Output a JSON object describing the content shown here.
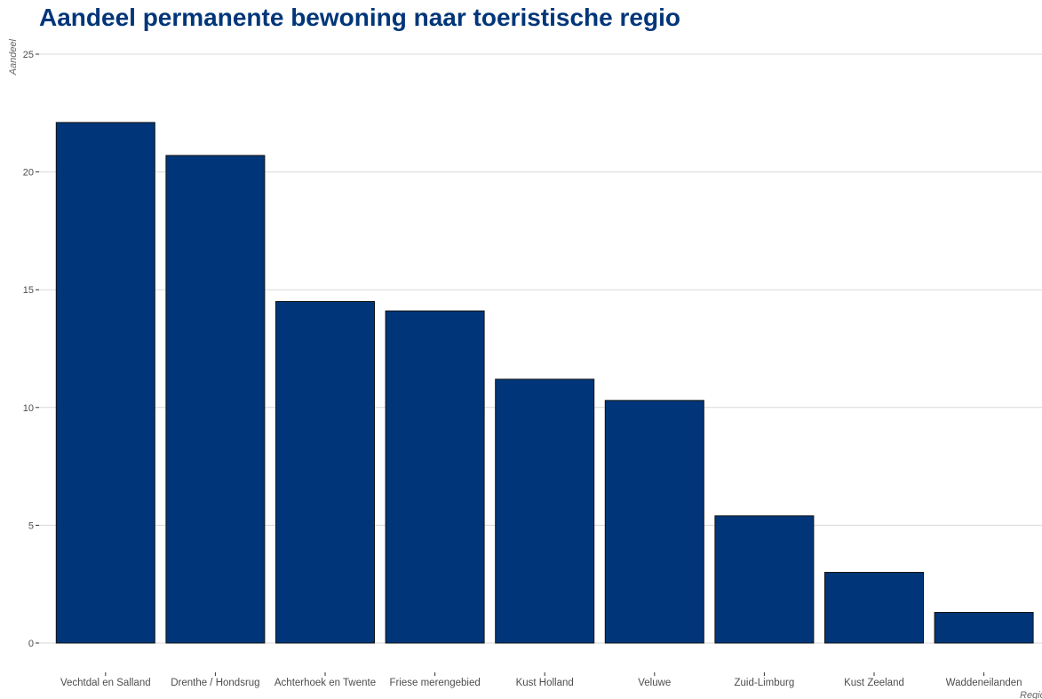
{
  "colors": {
    "bar_fill": "#003679",
    "title": "#003679"
  },
  "chart_data": {
    "type": "bar",
    "title": "Aandeel permanente bewoning naar toeristische regio",
    "xlabel": "Regio",
    "ylabel": "Aandeel",
    "categories": [
      "Vechtdal en Salland",
      "Drenthe / Hondsrug",
      "Achterhoek en Twente",
      "Friese merengebied",
      "Kust Holland",
      "Veluwe",
      "Zuid-Limburg",
      "Kust Zeeland",
      "Waddeneilanden"
    ],
    "values": [
      22.1,
      20.7,
      14.5,
      14.1,
      11.2,
      10.3,
      5.4,
      3.0,
      1.3
    ],
    "ylim": [
      0,
      25
    ],
    "yticks": [
      0,
      5,
      10,
      15,
      20,
      25
    ],
    "grid": true,
    "legend": "none"
  }
}
